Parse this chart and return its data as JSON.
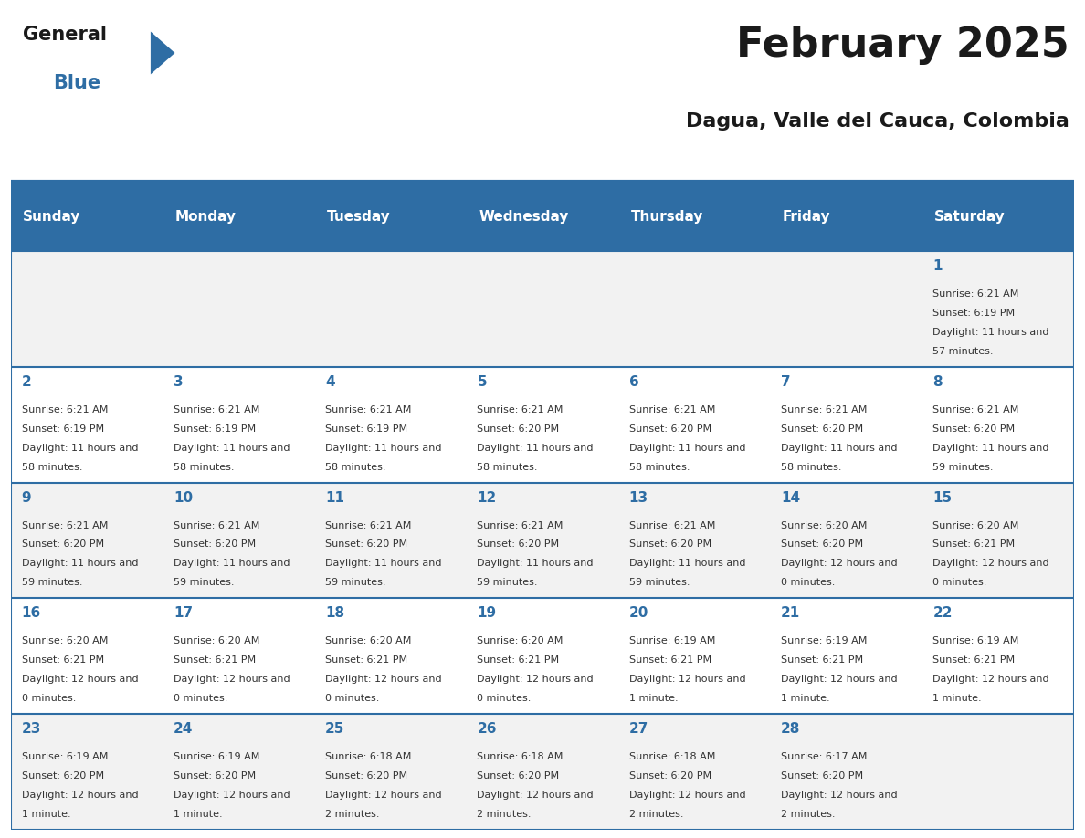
{
  "title": "February 2025",
  "subtitle": "Dagua, Valle del Cauca, Colombia",
  "header_bg": "#2E6DA4",
  "header_text_color": "#FFFFFF",
  "cell_bg_light": "#F2F2F2",
  "cell_bg_white": "#FFFFFF",
  "text_color": "#333333",
  "line_color": "#2E6DA4",
  "days_of_week": [
    "Sunday",
    "Monday",
    "Tuesday",
    "Wednesday",
    "Thursday",
    "Friday",
    "Saturday"
  ],
  "weeks": [
    [
      {
        "day": null
      },
      {
        "day": null
      },
      {
        "day": null
      },
      {
        "day": null
      },
      {
        "day": null
      },
      {
        "day": null
      },
      {
        "day": 1,
        "sunrise": "6:21 AM",
        "sunset": "6:19 PM",
        "daylight": "11 hours and 57 minutes."
      }
    ],
    [
      {
        "day": 2,
        "sunrise": "6:21 AM",
        "sunset": "6:19 PM",
        "daylight": "11 hours and 58 minutes."
      },
      {
        "day": 3,
        "sunrise": "6:21 AM",
        "sunset": "6:19 PM",
        "daylight": "11 hours and 58 minutes."
      },
      {
        "day": 4,
        "sunrise": "6:21 AM",
        "sunset": "6:19 PM",
        "daylight": "11 hours and 58 minutes."
      },
      {
        "day": 5,
        "sunrise": "6:21 AM",
        "sunset": "6:20 PM",
        "daylight": "11 hours and 58 minutes."
      },
      {
        "day": 6,
        "sunrise": "6:21 AM",
        "sunset": "6:20 PM",
        "daylight": "11 hours and 58 minutes."
      },
      {
        "day": 7,
        "sunrise": "6:21 AM",
        "sunset": "6:20 PM",
        "daylight": "11 hours and 58 minutes."
      },
      {
        "day": 8,
        "sunrise": "6:21 AM",
        "sunset": "6:20 PM",
        "daylight": "11 hours and 59 minutes."
      }
    ],
    [
      {
        "day": 9,
        "sunrise": "6:21 AM",
        "sunset": "6:20 PM",
        "daylight": "11 hours and 59 minutes."
      },
      {
        "day": 10,
        "sunrise": "6:21 AM",
        "sunset": "6:20 PM",
        "daylight": "11 hours and 59 minutes."
      },
      {
        "day": 11,
        "sunrise": "6:21 AM",
        "sunset": "6:20 PM",
        "daylight": "11 hours and 59 minutes."
      },
      {
        "day": 12,
        "sunrise": "6:21 AM",
        "sunset": "6:20 PM",
        "daylight": "11 hours and 59 minutes."
      },
      {
        "day": 13,
        "sunrise": "6:21 AM",
        "sunset": "6:20 PM",
        "daylight": "11 hours and 59 minutes."
      },
      {
        "day": 14,
        "sunrise": "6:20 AM",
        "sunset": "6:20 PM",
        "daylight": "12 hours and 0 minutes."
      },
      {
        "day": 15,
        "sunrise": "6:20 AM",
        "sunset": "6:21 PM",
        "daylight": "12 hours and 0 minutes."
      }
    ],
    [
      {
        "day": 16,
        "sunrise": "6:20 AM",
        "sunset": "6:21 PM",
        "daylight": "12 hours and 0 minutes."
      },
      {
        "day": 17,
        "sunrise": "6:20 AM",
        "sunset": "6:21 PM",
        "daylight": "12 hours and 0 minutes."
      },
      {
        "day": 18,
        "sunrise": "6:20 AM",
        "sunset": "6:21 PM",
        "daylight": "12 hours and 0 minutes."
      },
      {
        "day": 19,
        "sunrise": "6:20 AM",
        "sunset": "6:21 PM",
        "daylight": "12 hours and 0 minutes."
      },
      {
        "day": 20,
        "sunrise": "6:19 AM",
        "sunset": "6:21 PM",
        "daylight": "12 hours and 1 minute."
      },
      {
        "day": 21,
        "sunrise": "6:19 AM",
        "sunset": "6:21 PM",
        "daylight": "12 hours and 1 minute."
      },
      {
        "day": 22,
        "sunrise": "6:19 AM",
        "sunset": "6:21 PM",
        "daylight": "12 hours and 1 minute."
      }
    ],
    [
      {
        "day": 23,
        "sunrise": "6:19 AM",
        "sunset": "6:20 PM",
        "daylight": "12 hours and 1 minute."
      },
      {
        "day": 24,
        "sunrise": "6:19 AM",
        "sunset": "6:20 PM",
        "daylight": "12 hours and 1 minute."
      },
      {
        "day": 25,
        "sunrise": "6:18 AM",
        "sunset": "6:20 PM",
        "daylight": "12 hours and 2 minutes."
      },
      {
        "day": 26,
        "sunrise": "6:18 AM",
        "sunset": "6:20 PM",
        "daylight": "12 hours and 2 minutes."
      },
      {
        "day": 27,
        "sunrise": "6:18 AM",
        "sunset": "6:20 PM",
        "daylight": "12 hours and 2 minutes."
      },
      {
        "day": 28,
        "sunrise": "6:17 AM",
        "sunset": "6:20 PM",
        "daylight": "12 hours and 2 minutes."
      },
      {
        "day": null
      }
    ]
  ],
  "logo_triangle_color": "#2E6DA4",
  "title_fontsize": 32,
  "subtitle_fontsize": 16,
  "day_num_fontsize": 11,
  "cell_text_fontsize": 8,
  "header_fontsize": 11
}
